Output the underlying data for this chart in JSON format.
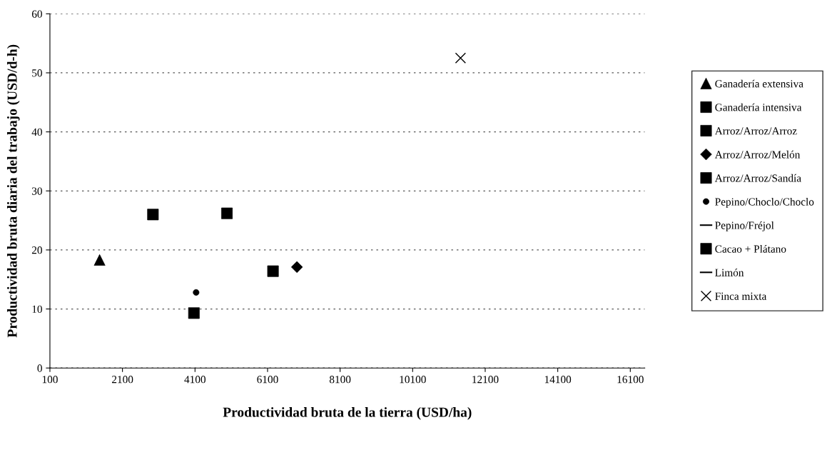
{
  "chart_data": {
    "type": "scatter",
    "xlabel": "Productividad bruta de la tierra (USD/ha)",
    "ylabel": "Productividad bruta diaria del trabajo (USD/d-h)",
    "xlim": [
      100,
      16500
    ],
    "xticks": [
      100,
      2100,
      4100,
      6100,
      8100,
      10100,
      12100,
      14100,
      16100
    ],
    "ylim": [
      0,
      60
    ],
    "yticks": [
      0,
      10,
      20,
      30,
      40,
      50,
      60
    ],
    "grid": "y",
    "legend": "right",
    "series": [
      {
        "name": "Ganadería extensiva",
        "color": "#000000",
        "marker": "triangle",
        "x": [
          1470
        ],
        "values": [
          18.3
        ]
      },
      {
        "name": "Ganadería intensiva",
        "color": "#000000",
        "marker": "square",
        "x": [
          2940
        ],
        "values": [
          26
        ]
      },
      {
        "name": "Arroz/Arroz/Arroz",
        "color": "#000000",
        "marker": "square",
        "x": [
          4070
        ],
        "values": [
          9.3
        ]
      },
      {
        "name": "Arroz/Arroz/Melón",
        "color": "#000000",
        "marker": "diamond",
        "x": [
          6910
        ],
        "values": [
          17.1
        ]
      },
      {
        "name": "Arroz/Arroz/Sandía",
        "color": "#000000",
        "marker": "square",
        "x": [
          6250
        ],
        "values": [
          16.4
        ]
      },
      {
        "name": "Pepino/Choclo/Choclo",
        "color": "#000000",
        "marker": "circle",
        "x": [
          4130
        ],
        "values": [
          12.8
        ]
      },
      {
        "name": "Pepino/Fréjol",
        "color": "#000000",
        "marker": "none",
        "line_style": "solid",
        "x": [
          null
        ],
        "values": [
          null
        ]
      },
      {
        "name": "Cacao + Plátano",
        "color": "#000000",
        "marker": "square",
        "x": [
          4980
        ],
        "values": [
          26.2
        ]
      },
      {
        "name": "Limón",
        "color": "#000000",
        "marker": "none",
        "line_style": "solid",
        "x": [
          null
        ],
        "values": [
          null
        ]
      },
      {
        "name": "Finca mixta",
        "color": "#000000",
        "marker": "cross",
        "x": [
          11420
        ],
        "values": [
          52.5
        ]
      }
    ]
  }
}
